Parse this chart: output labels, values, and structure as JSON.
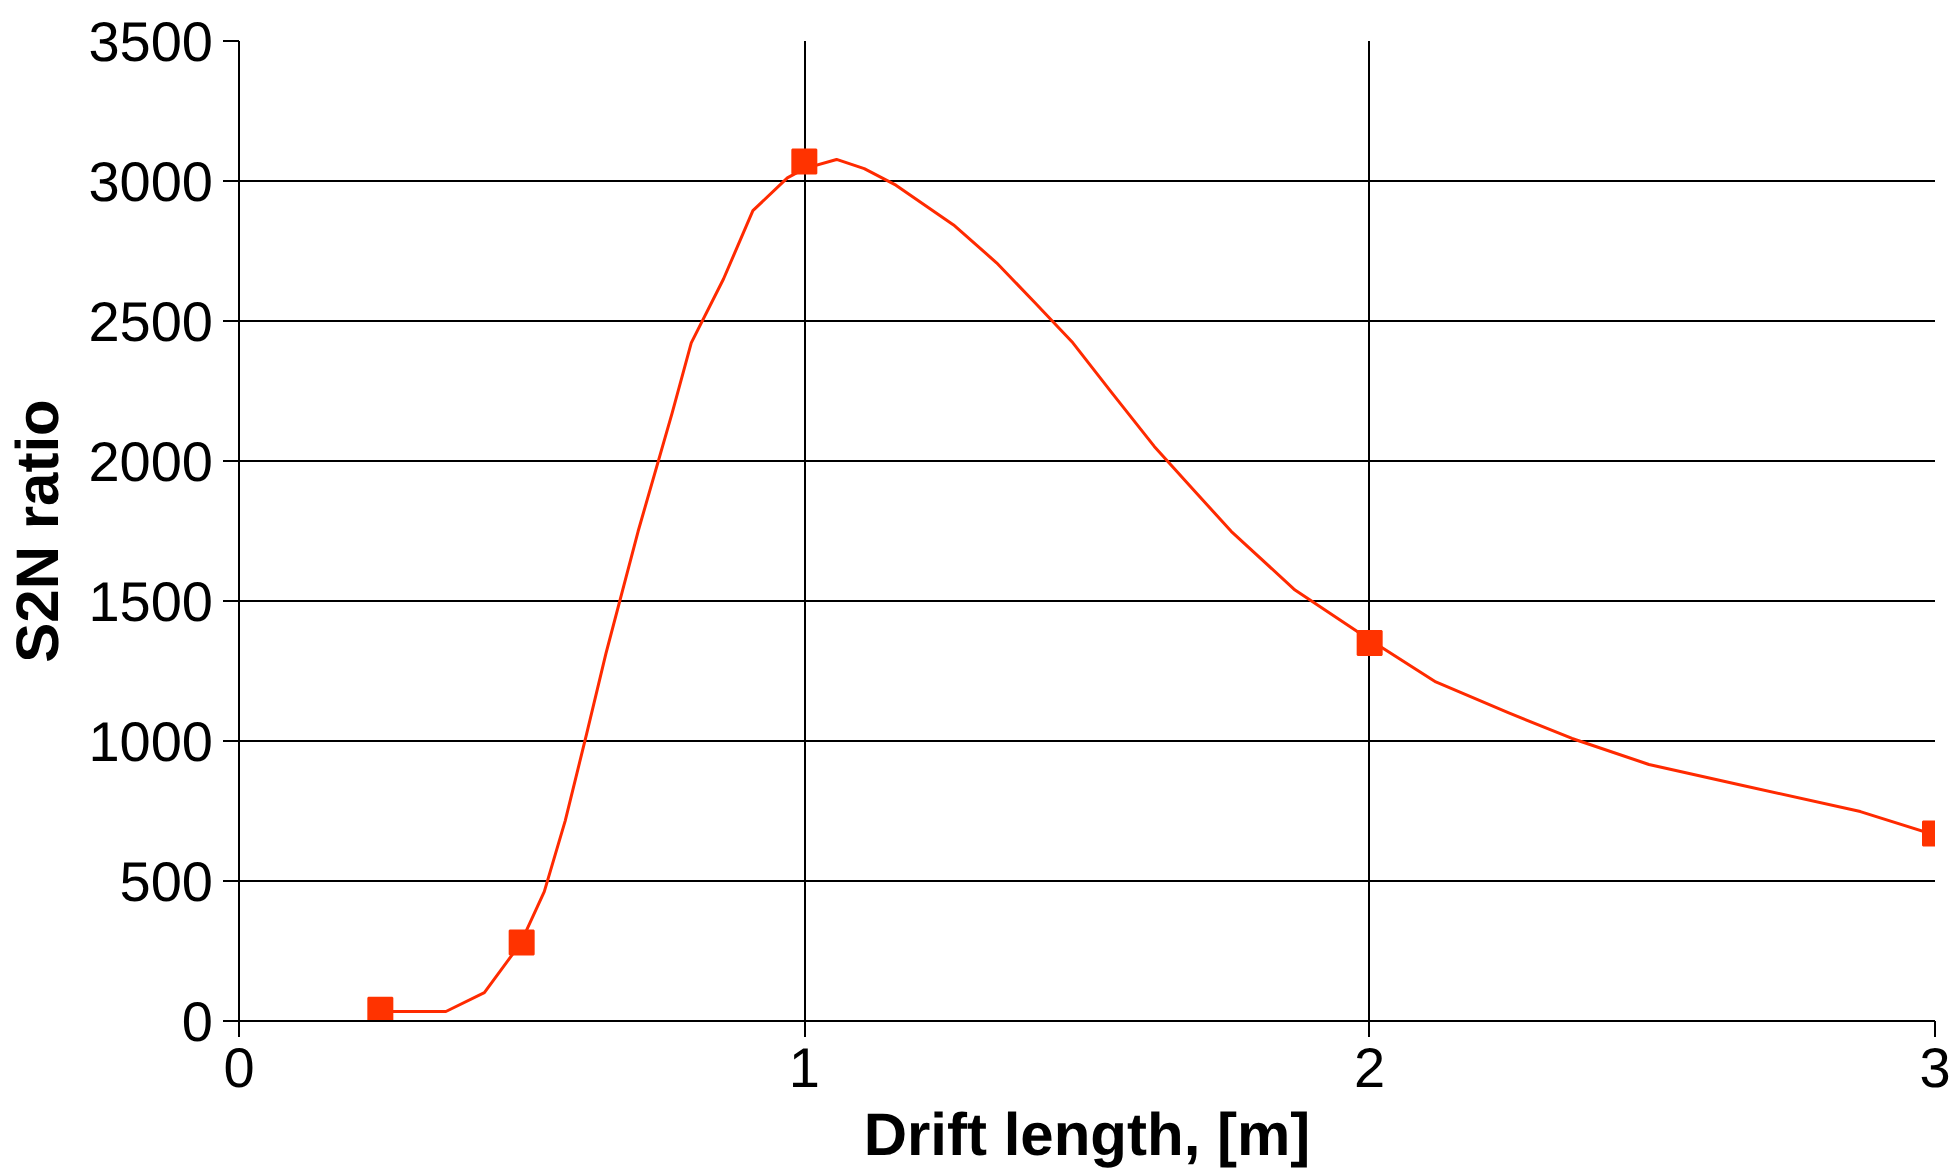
{
  "chart_data": {
    "type": "scatter",
    "xlabel": "Drift length, [m]",
    "ylabel": "S2N ratio",
    "xlim": [
      0,
      3
    ],
    "xticks": [
      0,
      1,
      2,
      3
    ],
    "ylim": [
      0,
      3500
    ],
    "yticks": [
      0,
      500,
      1000,
      1500,
      2000,
      2500,
      3000,
      3500
    ],
    "grid": true,
    "marker": "square",
    "series": [
      {
        "type": "line",
        "color": "#ff2a00",
        "marker": "none",
        "x": [
          0.245,
          0.366,
          0.434,
          0.498,
          0.54,
          0.577,
          0.615,
          0.649,
          0.706,
          0.766,
          0.8,
          0.857,
          0.909,
          0.97,
          1.0,
          1.057,
          1.106,
          1.162,
          1.264,
          1.34,
          1.408,
          1.475,
          1.543,
          1.619,
          1.687,
          1.755,
          1.868,
          2.0,
          2.117,
          2.245,
          2.358,
          2.494,
          2.66,
          2.868,
          3.0
        ],
        "values": [
          34,
          34,
          101,
          277,
          462,
          715,
          1026,
          1312,
          1749,
          2170,
          2422,
          2650,
          2894,
          3011,
          3044,
          3077,
          3044,
          2985,
          2843,
          2708,
          2565,
          2422,
          2246,
          2052,
          1900,
          1749,
          1539,
          1362,
          1211,
          1101,
          1009,
          916,
          841,
          748,
          664
        ]
      },
      {
        "color": "#ff3300",
        "x": [
          0.25,
          0.5,
          1,
          2,
          3
        ],
        "values": [
          40,
          280,
          3070,
          1350,
          670
        ]
      }
    ]
  }
}
